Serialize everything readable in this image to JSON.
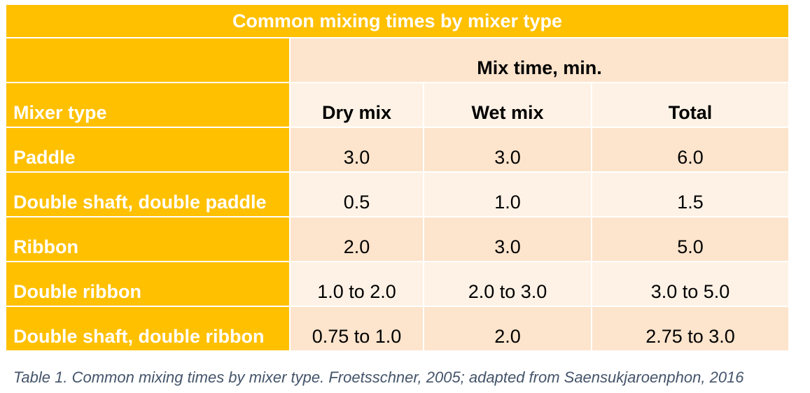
{
  "table": {
    "title": "Common mixing times by mixer type",
    "group_header": "Mix time, min.",
    "columns": [
      "Mixer type",
      "Dry mix",
      "Wet mix",
      "Total"
    ],
    "rows": [
      [
        "Paddle",
        "3.0",
        "3.0",
        "6.0"
      ],
      [
        "Double shaft, double paddle",
        "0.5",
        "1.0",
        "1.5"
      ],
      [
        "Ribbon",
        "2.0",
        "3.0",
        "5.0"
      ],
      [
        "Double ribbon",
        "1.0 to 2.0",
        "2.0 to 3.0",
        "3.0 to 5.0"
      ],
      [
        "Double shaft, double ribbon",
        "0.75 to 1.0",
        "2.0",
        "2.75 to 3.0"
      ]
    ],
    "colors": {
      "header_fill": "#ffc000",
      "band_dark": "#fde4cc",
      "band_light": "#fef2e6",
      "caption_text": "#44546a"
    }
  },
  "caption": "Table 1. Common mixing times by mixer type. Froetsschner, 2005; adapted from Saensukjaroenphon, 2016"
}
